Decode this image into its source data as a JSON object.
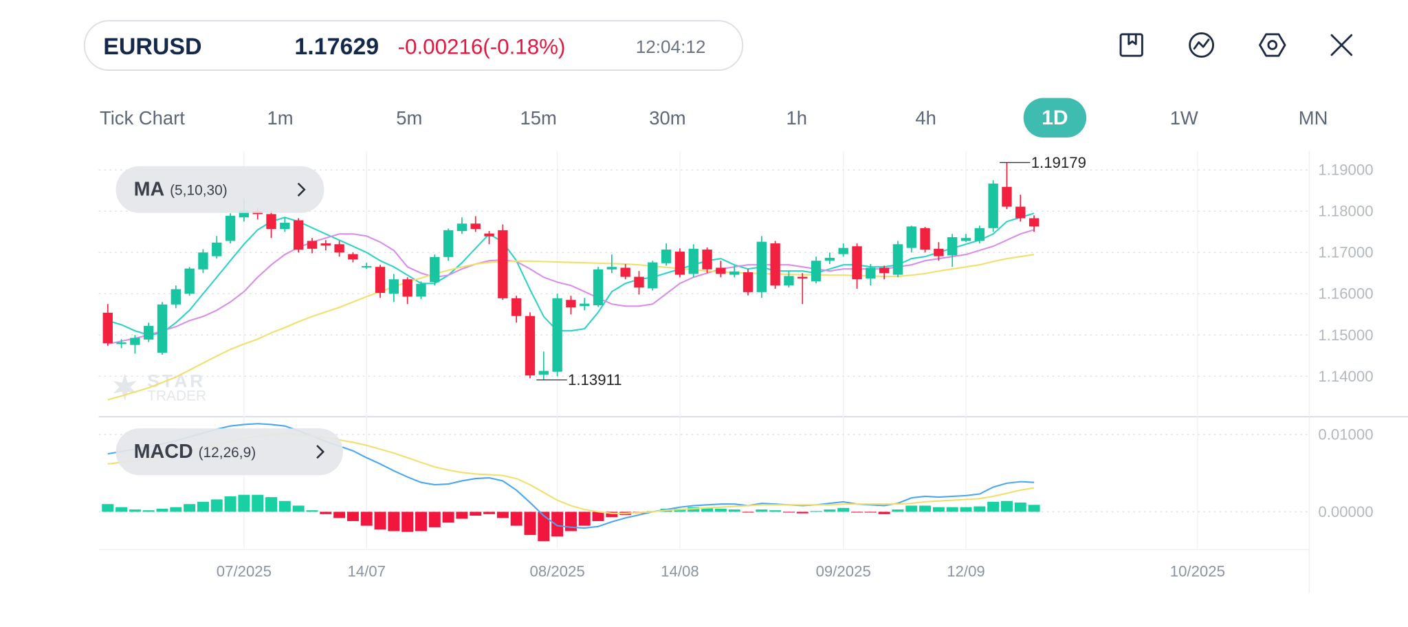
{
  "header": {
    "symbol": "EURUSD",
    "price": 1.17629,
    "change": "-0.00216(-0.18%)",
    "time": "12:04:12"
  },
  "timeframes": {
    "items": [
      "Tick Chart",
      "1m",
      "5m",
      "15m",
      "30m",
      "1h",
      "4h",
      "1D",
      "1W",
      "MN"
    ],
    "active": 7
  },
  "chart_data": [
    {
      "type": "candlestick",
      "indicator": "MA",
      "params": "(5,10,30)",
      "watermark": [
        "STAR",
        "TRADER"
      ],
      "up_color": "#19c4a0",
      "down_color": "#f2213f",
      "xlim": [
        -0.66,
        88.2
      ],
      "ylim": [
        1.1304,
        1.1946
      ],
      "yticks": [
        {
          "value": 1.19,
          "label": "1.19000"
        },
        {
          "value": 1.18,
          "label": "1.18000"
        },
        {
          "value": 1.17,
          "label": "1.17000"
        },
        {
          "value": 1.16,
          "label": "1.16000"
        },
        {
          "value": 1.15,
          "label": "1.15000"
        },
        {
          "value": 1.14,
          "label": "1.14000"
        }
      ],
      "annotations": [
        {
          "value": 1.19179,
          "x": 66
        },
        {
          "value": 1.13911,
          "x": 32
        }
      ],
      "open": [
        1.1554,
        1.1478,
        1.1476,
        1.1489,
        1.1457,
        1.1574,
        1.16,
        1.1659,
        1.1691,
        1.1728,
        1.1785,
        1.18,
        1.1793,
        1.1757,
        1.1778,
        1.1728,
        1.1722,
        1.172,
        1.1696,
        1.1665,
        1.1665,
        1.16,
        1.1635,
        1.1593,
        1.1628,
        1.1689,
        1.1752,
        1.177,
        1.1746,
        1.1754,
        1.1589,
        1.1546,
        1.1404,
        1.1411,
        1.1585,
        1.157,
        1.1572,
        1.1659,
        1.1663,
        1.1641,
        1.1613,
        1.1674,
        1.1702,
        1.1648,
        1.1707,
        1.1663,
        1.1646,
        1.1652,
        1.1604,
        1.1722,
        1.162,
        1.1641,
        1.163,
        1.168,
        1.1696,
        1.1715,
        1.1637,
        1.1663,
        1.1646,
        1.1711,
        1.1759,
        1.1709,
        1.1693,
        1.1728,
        1.1728,
        1.1759,
        1.1859,
        1.1811,
        1.1783
      ],
      "high": [
        1.1575,
        1.149,
        1.15,
        1.153,
        1.158,
        1.162,
        1.1665,
        1.1708,
        1.174,
        1.1795,
        1.183,
        1.1808,
        1.1802,
        1.1785,
        1.1783,
        1.1735,
        1.173,
        1.1728,
        1.17,
        1.1675,
        1.167,
        1.1648,
        1.164,
        1.163,
        1.1695,
        1.1758,
        1.1785,
        1.1788,
        1.1752,
        1.1768,
        1.1595,
        1.1555,
        1.146,
        1.16,
        1.1595,
        1.159,
        1.1665,
        1.1695,
        1.1672,
        1.1655,
        1.168,
        1.1722,
        1.171,
        1.172,
        1.1712,
        1.168,
        1.1668,
        1.166,
        1.174,
        1.1728,
        1.1655,
        1.165,
        1.169,
        1.17,
        1.1722,
        1.1722,
        1.1672,
        1.1668,
        1.1728,
        1.1765,
        1.1762,
        1.1725,
        1.1745,
        1.1745,
        1.1765,
        1.1875,
        1.1918,
        1.184,
        1.179
      ],
      "low": [
        1.1474,
        1.1468,
        1.1455,
        1.1483,
        1.1452,
        1.1565,
        1.1595,
        1.165,
        1.1685,
        1.1722,
        1.1775,
        1.178,
        1.1735,
        1.175,
        1.17,
        1.1698,
        1.1705,
        1.169,
        1.1676,
        1.166,
        1.159,
        1.158,
        1.1575,
        1.1587,
        1.162,
        1.168,
        1.1745,
        1.175,
        1.172,
        1.1585,
        1.153,
        1.1395,
        1.1391,
        1.14,
        1.155,
        1.156,
        1.1568,
        1.165,
        1.1635,
        1.1598,
        1.1608,
        1.1668,
        1.164,
        1.164,
        1.165,
        1.164,
        1.164,
        1.1596,
        1.159,
        1.1612,
        1.1615,
        1.1575,
        1.1625,
        1.1672,
        1.169,
        1.1612,
        1.162,
        1.1635,
        1.164,
        1.17,
        1.17,
        1.168,
        1.1665,
        1.1725,
        1.1722,
        1.175,
        1.1805,
        1.1775,
        1.175
      ],
      "close": [
        1.148,
        1.1482,
        1.1493,
        1.1522,
        1.1574,
        1.1611,
        1.1661,
        1.17,
        1.1724,
        1.1789,
        1.1802,
        1.1793,
        1.1757,
        1.1772,
        1.1707,
        1.1709,
        1.1717,
        1.17,
        1.1683,
        1.1667,
        1.1602,
        1.1635,
        1.1593,
        1.1624,
        1.1689,
        1.1754,
        1.177,
        1.1757,
        1.1739,
        1.1589,
        1.1546,
        1.1402,
        1.1413,
        1.1589,
        1.1567,
        1.1576,
        1.1659,
        1.1665,
        1.1641,
        1.1615,
        1.1676,
        1.1707,
        1.1646,
        1.1709,
        1.1659,
        1.1648,
        1.1654,
        1.1604,
        1.1726,
        1.162,
        1.1643,
        1.1637,
        1.168,
        1.1687,
        1.1711,
        1.1635,
        1.1663,
        1.165,
        1.172,
        1.1763,
        1.1707,
        1.1691,
        1.1737,
        1.1735,
        1.1759,
        1.1867,
        1.1811,
        1.1783,
        1.1763
      ],
      "series": [
        {
          "color": "#2ad3c6",
          "values": [
            1.1535,
            1.1525,
            1.151,
            1.15,
            1.1505,
            1.153,
            1.156,
            1.16,
            1.164,
            1.168,
            1.172,
            1.1755,
            1.1775,
            1.1785,
            1.1775,
            1.176,
            1.1745,
            1.173,
            1.1715,
            1.17,
            1.168,
            1.1665,
            1.1645,
            1.1625,
            1.1625,
            1.1645,
            1.1675,
            1.171,
            1.1745,
            1.1725,
            1.168,
            1.161,
            1.1545,
            1.151,
            1.151,
            1.1515,
            1.1555,
            1.1605,
            1.1625,
            1.1635,
            1.164,
            1.165,
            1.166,
            1.167,
            1.168,
            1.1685,
            1.167,
            1.166,
            1.1665,
            1.1655,
            1.1655,
            1.1655,
            1.165,
            1.166,
            1.167,
            1.167,
            1.1665,
            1.1665,
            1.167,
            1.1685,
            1.169,
            1.17,
            1.171,
            1.172,
            1.173,
            1.1745,
            1.1775,
            1.1785,
            1.1795
          ]
        },
        {
          "color": "#d88ee8",
          "values": [
            1.1478,
            1.1485,
            1.1492,
            1.15,
            1.151,
            1.152,
            1.1535,
            1.1545,
            1.156,
            1.158,
            1.1605,
            1.164,
            1.167,
            1.1695,
            1.1712,
            1.1725,
            1.1735,
            1.1745,
            1.1745,
            1.174,
            1.1725,
            1.1705,
            1.1665,
            1.165,
            1.164,
            1.1645,
            1.166,
            1.1672,
            1.168,
            1.1682,
            1.1678,
            1.166,
            1.164,
            1.1628,
            1.162,
            1.1605,
            1.159,
            1.1575,
            1.157,
            1.157,
            1.1575,
            1.16,
            1.1625,
            1.164,
            1.165,
            1.166,
            1.1665,
            1.167,
            1.167,
            1.167,
            1.167,
            1.1665,
            1.166,
            1.1655,
            1.166,
            1.166,
            1.166,
            1.166,
            1.1665,
            1.167,
            1.168,
            1.1685,
            1.169,
            1.1695,
            1.1705,
            1.1715,
            1.173,
            1.1745,
            1.1755
          ]
        },
        {
          "color": "#f2df6a",
          "values": [
            1.1343,
            1.1352,
            1.1362,
            1.1372,
            1.1385,
            1.1398,
            1.1415,
            1.1432,
            1.1449,
            1.1465,
            1.1478,
            1.149,
            1.1505,
            1.1518,
            1.1532,
            1.1545,
            1.1556,
            1.1567,
            1.158,
            1.1593,
            1.1605,
            1.1617,
            1.1628,
            1.1638,
            1.1648,
            1.1657,
            1.1665,
            1.1672,
            1.1676,
            1.1678,
            1.1679,
            1.1679,
            1.1678,
            1.1677,
            1.1676,
            1.1675,
            1.1674,
            1.1673,
            1.1672,
            1.167,
            1.1667,
            1.1664,
            1.1661,
            1.1658,
            1.1655,
            1.1653,
            1.1651,
            1.165,
            1.1649,
            1.1648,
            1.1647,
            1.1646,
            1.1646,
            1.1645,
            1.1645,
            1.1644,
            1.1643,
            1.1642,
            1.1642,
            1.1645,
            1.1649,
            1.1655,
            1.166,
            1.1665,
            1.167,
            1.1678,
            1.1685,
            1.169,
            1.1695
          ]
        }
      ]
    },
    {
      "type": "macd",
      "indicator": "MACD",
      "params": "(12,26,9)",
      "xlim": [
        -0.66,
        88.2
      ],
      "xticks": [
        {
          "value": 10,
          "label": "07/2025"
        },
        {
          "value": 19,
          "label": "14/07"
        },
        {
          "value": 33,
          "label": "08/2025"
        },
        {
          "value": 42,
          "label": "14/08"
        },
        {
          "value": 54,
          "label": "09/2025"
        },
        {
          "value": 63,
          "label": "12/09"
        },
        {
          "value": 80,
          "label": "10/2025"
        }
      ],
      "ylim": [
        -0.0049,
        0.0123
      ],
      "yticks": [
        {
          "value": 0.01,
          "label": "0.01000"
        },
        {
          "value": 0,
          "label": "0.00000"
        }
      ],
      "up_color": "#19d0a2",
      "down_color": "#f2163f",
      "histogram": [
        0.001,
        0.0006,
        0.0003,
        0.0002,
        0.0004,
        0.0006,
        0.001,
        0.0013,
        0.0016,
        0.002,
        0.0022,
        0.0022,
        0.0019,
        0.0014,
        0.0008,
        0.0002,
        -0.0003,
        -0.0008,
        -0.0012,
        -0.0018,
        -0.0023,
        -0.0025,
        -0.0026,
        -0.0025,
        -0.002,
        -0.0014,
        -0.0009,
        -0.0005,
        -0.0003,
        -0.0008,
        -0.0018,
        -0.003,
        -0.0038,
        -0.0032,
        -0.0025,
        -0.0018,
        -0.0012,
        -0.0007,
        -0.0004,
        -0.0002,
        0.0001,
        0.0004,
        0.0004,
        0.0006,
        0.0005,
        0.0004,
        0.0003,
        -0.0001,
        0.0003,
        0.0002,
        -0.0001,
        -0.0002,
        0.0001,
        0.0003,
        0.0005,
        -0.0001,
        -0.0001,
        -0.0003,
        0.0003,
        0.0008,
        0.0008,
        0.0006,
        0.0006,
        0.0006,
        0.0007,
        0.0013,
        0.0014,
        0.0012,
        0.0009
      ],
      "series": [
        {
          "color": "#4aa6ef",
          "values": [
            0.0075,
            0.0078,
            0.0081,
            0.0084,
            0.0088,
            0.0092,
            0.0097,
            0.0102,
            0.0107,
            0.0111,
            0.0113,
            0.0114,
            0.0113,
            0.0111,
            0.0105,
            0.0098,
            0.0091,
            0.0085,
            0.0079,
            0.007,
            0.0062,
            0.0053,
            0.0045,
            0.0038,
            0.0035,
            0.0036,
            0.004,
            0.0043,
            0.0044,
            0.004,
            0.0028,
            0.0012,
            -0.0005,
            -0.0018,
            -0.002,
            -0.0021,
            -0.0019,
            -0.0013,
            -0.0008,
            -0.0004,
            0.0,
            0.0003,
            0.0006,
            0.0008,
            0.0009,
            0.001,
            0.001,
            0.0008,
            0.0011,
            0.001,
            0.0009,
            0.0008,
            0.0009,
            0.0011,
            0.0013,
            0.001,
            0.0009,
            0.0008,
            0.0011,
            0.0018,
            0.002,
            0.0019,
            0.002,
            0.0021,
            0.0023,
            0.0032,
            0.0037,
            0.0039,
            0.0038
          ]
        },
        {
          "color": "#f2df6a",
          "values": [
            0.0062,
            0.0064,
            0.0066,
            0.0069,
            0.0072,
            0.0075,
            0.0079,
            0.0083,
            0.0087,
            0.0091,
            0.0095,
            0.0098,
            0.01,
            0.0101,
            0.01,
            0.0098,
            0.0096,
            0.0093,
            0.009,
            0.0086,
            0.0081,
            0.0076,
            0.007,
            0.0064,
            0.0058,
            0.0054,
            0.0051,
            0.0049,
            0.0048,
            0.0047,
            0.0043,
            0.0035,
            0.0025,
            0.0015,
            0.0008,
            0.0003,
            0.0,
            -0.0002,
            -0.0002,
            -0.0001,
            0.0,
            0.0002,
            0.0003,
            0.0004,
            0.0005,
            0.0006,
            0.0007,
            0.0008,
            0.0009,
            0.0009,
            0.0009,
            0.0009,
            0.0009,
            0.0009,
            0.001,
            0.001,
            0.001,
            0.001,
            0.001,
            0.0011,
            0.0013,
            0.0014,
            0.0015,
            0.0016,
            0.0017,
            0.002,
            0.0024,
            0.0028,
            0.0031
          ]
        }
      ]
    }
  ]
}
